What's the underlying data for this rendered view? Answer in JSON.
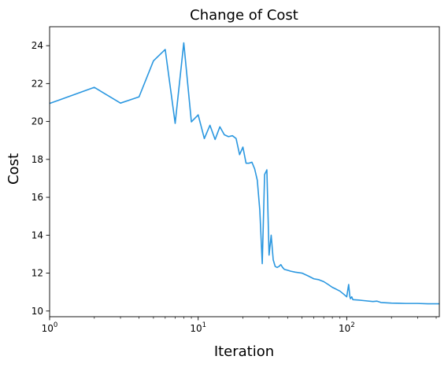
{
  "chart_data": {
    "type": "line",
    "title": "Change of Cost",
    "xlabel": "Iteration",
    "ylabel": "Cost",
    "xscale": "log",
    "xlim": [
      1,
      420
    ],
    "ylim": [
      9.7,
      25
    ],
    "grid": false,
    "line_color": "#2a97e0",
    "xticks": [
      {
        "value": 1,
        "base": "10",
        "exp": "0"
      },
      {
        "value": 10,
        "base": "10",
        "exp": "1"
      },
      {
        "value": 100,
        "base": "10",
        "exp": "2"
      }
    ],
    "yticks": [
      {
        "value": 10,
        "label": "10"
      },
      {
        "value": 12,
        "label": "12"
      },
      {
        "value": 14,
        "label": "14"
      },
      {
        "value": 16,
        "label": "16"
      },
      {
        "value": 18,
        "label": "18"
      },
      {
        "value": 20,
        "label": "20"
      },
      {
        "value": 22,
        "label": "22"
      },
      {
        "value": 24,
        "label": "24"
      }
    ],
    "series": [
      {
        "x": [
          1,
          2,
          3,
          4,
          5,
          6,
          7,
          8,
          9,
          10,
          11,
          12,
          13,
          14,
          15,
          16,
          17,
          18,
          19,
          20,
          21,
          22,
          23,
          24,
          25,
          26,
          27,
          28,
          29,
          30,
          31,
          32,
          33,
          34,
          35,
          36,
          37,
          38,
          40,
          42,
          45,
          50,
          55,
          60,
          65,
          70,
          75,
          80,
          85,
          90,
          95,
          100,
          103,
          105,
          106,
          108,
          110,
          120,
          130,
          150,
          160,
          170,
          200,
          250,
          300,
          350,
          400,
          420
        ],
        "y": [
          20.95,
          21.8,
          20.97,
          21.3,
          23.2,
          23.8,
          19.9,
          24.15,
          19.98,
          20.35,
          19.1,
          19.8,
          19.05,
          19.72,
          19.3,
          19.2,
          19.25,
          19.1,
          18.25,
          18.65,
          17.8,
          17.8,
          17.85,
          17.5,
          16.9,
          15.3,
          12.5,
          17.2,
          17.45,
          12.95,
          14.0,
          12.7,
          12.35,
          12.3,
          12.35,
          12.45,
          12.3,
          12.2,
          12.15,
          12.1,
          12.05,
          12.0,
          11.85,
          11.7,
          11.65,
          11.55,
          11.4,
          11.25,
          11.15,
          11.05,
          10.9,
          10.75,
          11.4,
          10.75,
          10.65,
          10.75,
          10.6,
          10.58,
          10.55,
          10.5,
          10.52,
          10.45,
          10.42,
          10.4,
          10.4,
          10.38,
          10.38,
          10.38
        ]
      }
    ]
  }
}
